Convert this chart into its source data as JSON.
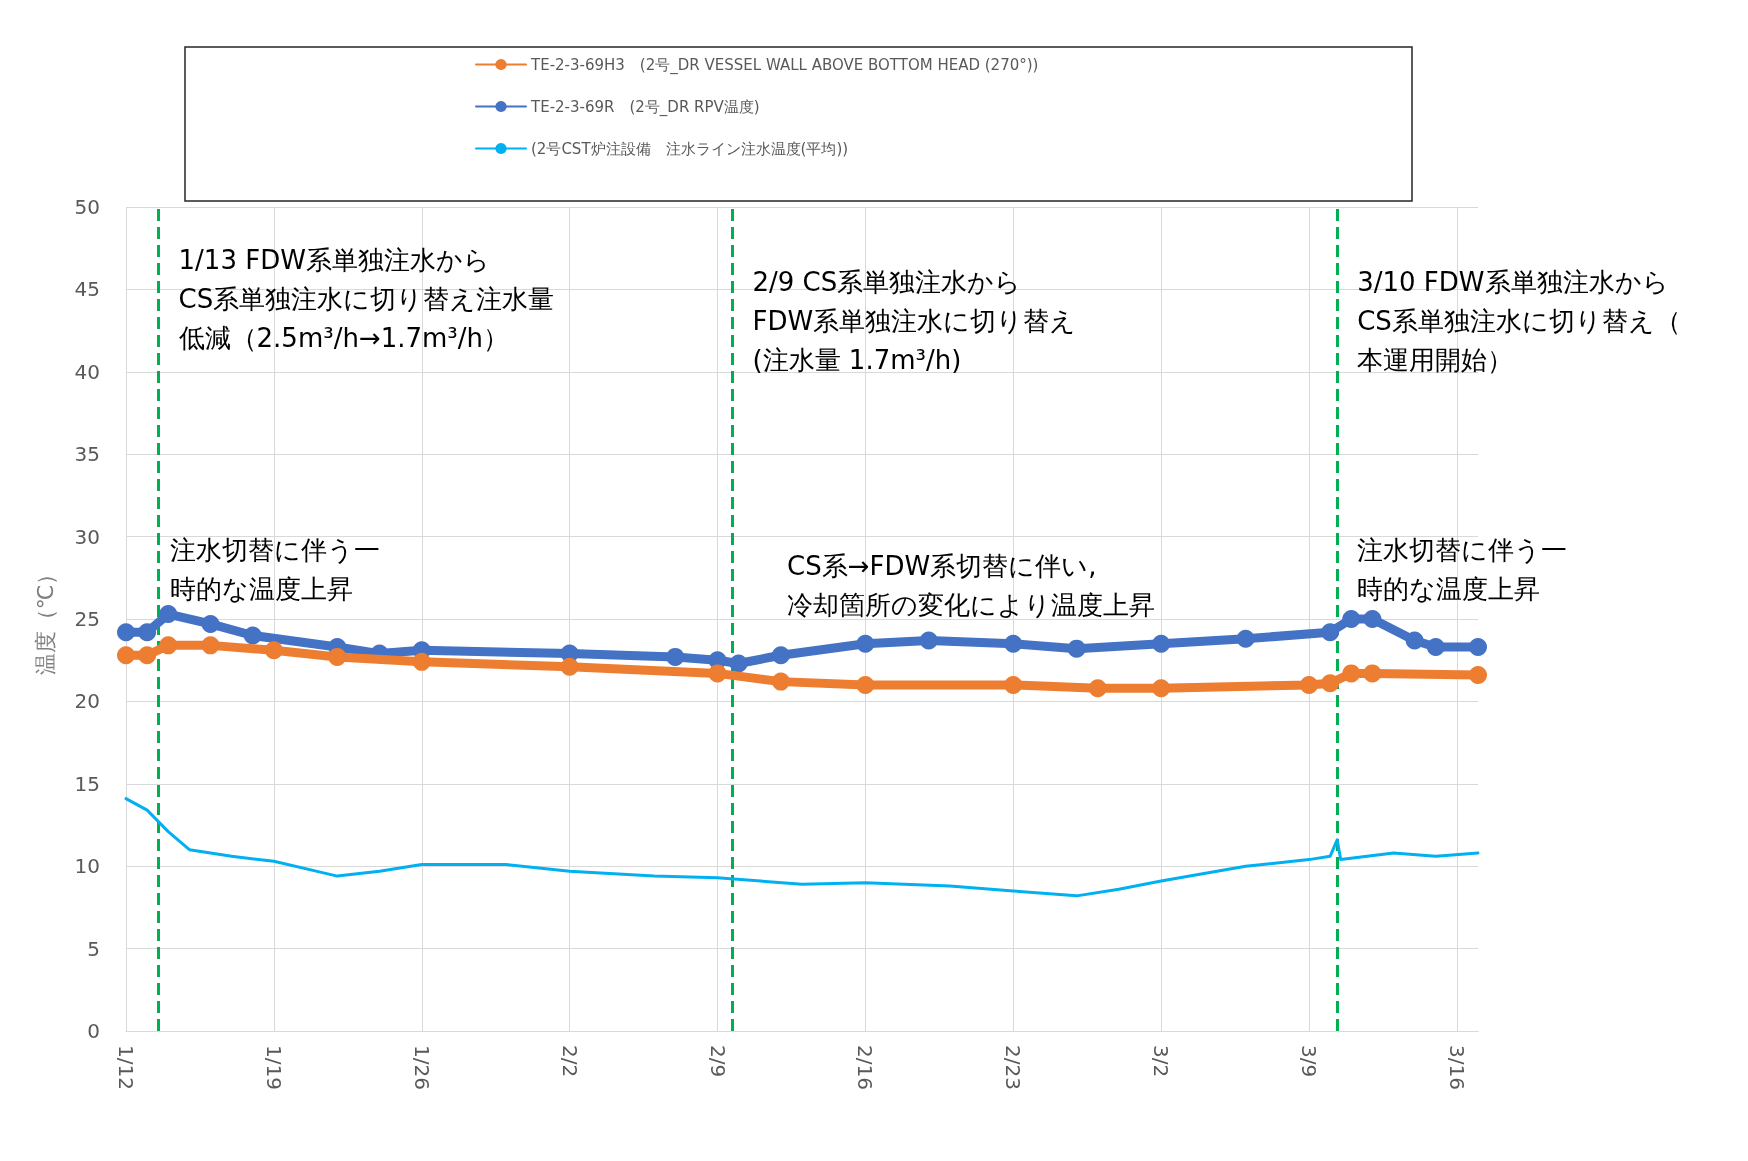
{
  "chart_data": {
    "type": "line",
    "ylabel": "温度（℃）",
    "xlim": [
      "--01-12",
      "--03-17"
    ],
    "xticks": [
      {
        "value": "--01-12",
        "label": "1/12"
      },
      {
        "value": "--01-19",
        "label": "1/19"
      },
      {
        "value": "--01-26",
        "label": "1/26"
      },
      {
        "value": "--02-02",
        "label": "2/2"
      },
      {
        "value": "--02-09",
        "label": "2/9"
      },
      {
        "value": "--02-16",
        "label": "2/16"
      },
      {
        "value": "--02-23",
        "label": "2/23"
      },
      {
        "value": "--03-02",
        "label": "3/2"
      },
      {
        "value": "--03-09",
        "label": "3/9"
      },
      {
        "value": "--03-16",
        "label": "3/16"
      }
    ],
    "ylim": [
      0,
      50
    ],
    "yticks": [
      0,
      5,
      10,
      15,
      20,
      25,
      30,
      35,
      40,
      45,
      50
    ],
    "grid": true,
    "legend": "top",
    "series": [
      {
        "name": "TE-2-3-69H3　(2号_DR VESSEL WALL ABOVE BOTTOM HEAD (270°))",
        "color": "#ed7d31",
        "marker": "circle",
        "x": [
          "--01-12",
          "--01-13",
          "--01-14",
          "--01-16",
          "--01-19",
          "--01-22",
          "--01-26",
          "--02-02",
          "--02-09",
          "--02-12",
          "--02-16",
          "--02-23",
          "--02-27",
          "--03-02",
          "--03-09",
          "--03-10",
          "--03-11",
          "--03-12",
          "--03-17"
        ],
        "values": [
          22.8,
          22.8,
          23.4,
          23.4,
          23.1,
          22.7,
          22.4,
          22.1,
          21.7,
          21.2,
          21.0,
          21.0,
          20.8,
          20.8,
          21.0,
          21.1,
          21.7,
          21.7,
          21.6
        ]
      },
      {
        "name": "TE-2-3-69R　(2号_DR RPV温度)",
        "color": "#4472c4",
        "marker": "circle",
        "x": [
          "--01-12",
          "--01-13",
          "--01-14",
          "--01-16",
          "--01-18",
          "--01-22",
          "--01-24",
          "--01-26",
          "--02-02",
          "--02-07",
          "--02-09",
          "--02-10",
          "--02-12",
          "--02-16",
          "--02-19",
          "--02-23",
          "--02-26",
          "--03-02",
          "--03-06",
          "--03-10",
          "--03-11",
          "--03-12",
          "--03-14",
          "--03-15",
          "--03-17"
        ],
        "values": [
          24.2,
          24.2,
          25.3,
          24.7,
          24.0,
          23.3,
          22.9,
          23.1,
          22.9,
          22.7,
          22.5,
          22.3,
          22.8,
          23.5,
          23.7,
          23.5,
          23.2,
          23.5,
          23.8,
          24.2,
          25.0,
          25.0,
          23.7,
          23.3,
          23.3
        ]
      },
      {
        "name": "(2号CST炉注設備　注水ライン注水温度(平均))",
        "color": "#00b0f0",
        "marker": "none",
        "x": [
          "--01-12",
          "--01-13",
          "--01-14",
          "--01-15",
          "--01-17",
          "--01-19",
          "--01-21",
          "--01-22",
          "--01-24",
          "--01-26",
          "--01-30",
          "--02-02",
          "--02-06",
          "--02-09",
          "--02-13",
          "--02-16",
          "--02-20",
          "--02-23",
          "--02-26",
          "--02-28",
          "--03-02",
          "--03-06",
          "--03-09",
          "--03-10",
          "--03-10T08:00",
          "--03-10T12:00",
          "--03-13",
          "--03-15",
          "--03-17"
        ],
        "values": [
          14.1,
          13.4,
          12.1,
          11.0,
          10.6,
          10.3,
          9.7,
          9.4,
          9.7,
          10.1,
          10.1,
          9.7,
          9.4,
          9.3,
          8.9,
          9.0,
          8.8,
          8.5,
          8.2,
          8.6,
          9.1,
          10.0,
          10.4,
          10.6,
          11.6,
          10.4,
          10.8,
          10.6,
          10.8
        ]
      }
    ],
    "ref_lines": [
      {
        "axis": "x",
        "value": "--01-13T13:00",
        "label": "1/13 FDW系単独注水から\nCS系単独注水に切り替え注水量低減（2.5m³/h→1.7m³/h）",
        "color": "#00b050",
        "line_style": "dashed"
      },
      {
        "axis": "x",
        "value": "--02-09T17:00",
        "label": "2/9 CS系単独注水から\nFDW系単独注水に切り替え\n(注水量 1.7m³/h)",
        "color": "#00b050",
        "line_style": "dashed"
      },
      {
        "axis": "x",
        "value": "--03-10T08:00",
        "label": "3/10 FDW系単独注水から\nCS系単独注水に切り替え（本運用開始）",
        "color": "#00b050",
        "line_style": "dashed"
      }
    ],
    "annotations": [
      "注水切替に伴う一時的な温度上昇",
      "CS系→FDW系切替に伴い,\n冷却箇所の変化により温度上昇",
      "注水切替に伴う一時的な温度上昇"
    ]
  }
}
